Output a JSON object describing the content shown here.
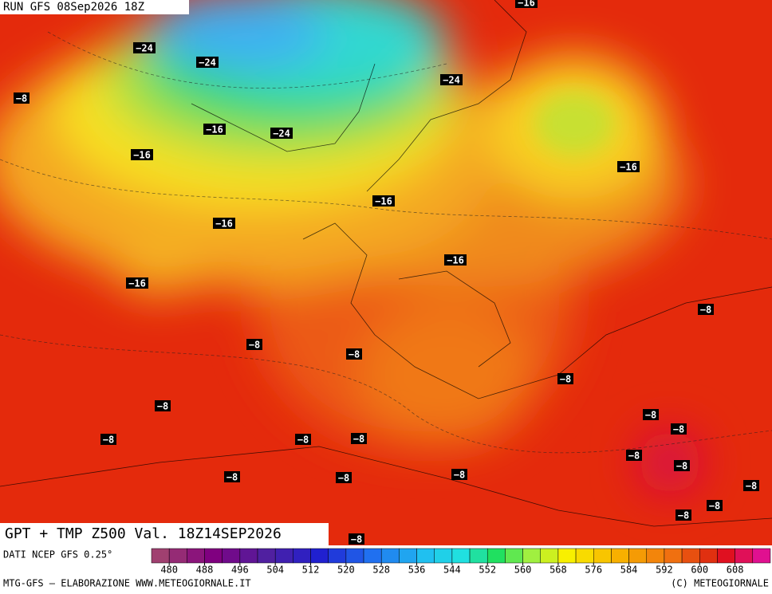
{
  "header": "RUN GFS 08Sep2026 18Z",
  "contour_labels": [
    "-16",
    "-24",
    "-24",
    "-24",
    "-8",
    "-16",
    "-24",
    "-16",
    "-16",
    "-16",
    "-16",
    "-16",
    "-16",
    "-8",
    "-8",
    "-8",
    "-8",
    "-8",
    "-8",
    "-8",
    "-8",
    "-8",
    "-8",
    "-8",
    "-8",
    "-8",
    "-8",
    "-8",
    "-8",
    "-8",
    "-8",
    "-8"
  ],
  "title": "GPT + TMP Z500 Val. 18Z14SEP2026",
  "source": "DATI NCEP GFS 0.25°",
  "legend": {
    "ticks": [
      480,
      488,
      496,
      504,
      512,
      520,
      528,
      536,
      544,
      552,
      560,
      568,
      576,
      584,
      592,
      600,
      608
    ]
  },
  "footer_left": "MTG-GFS — ELABORAZIONE WWW.METEOGIORNALE.IT",
  "footer_right": "(C) METEOGIORNALE"
}
